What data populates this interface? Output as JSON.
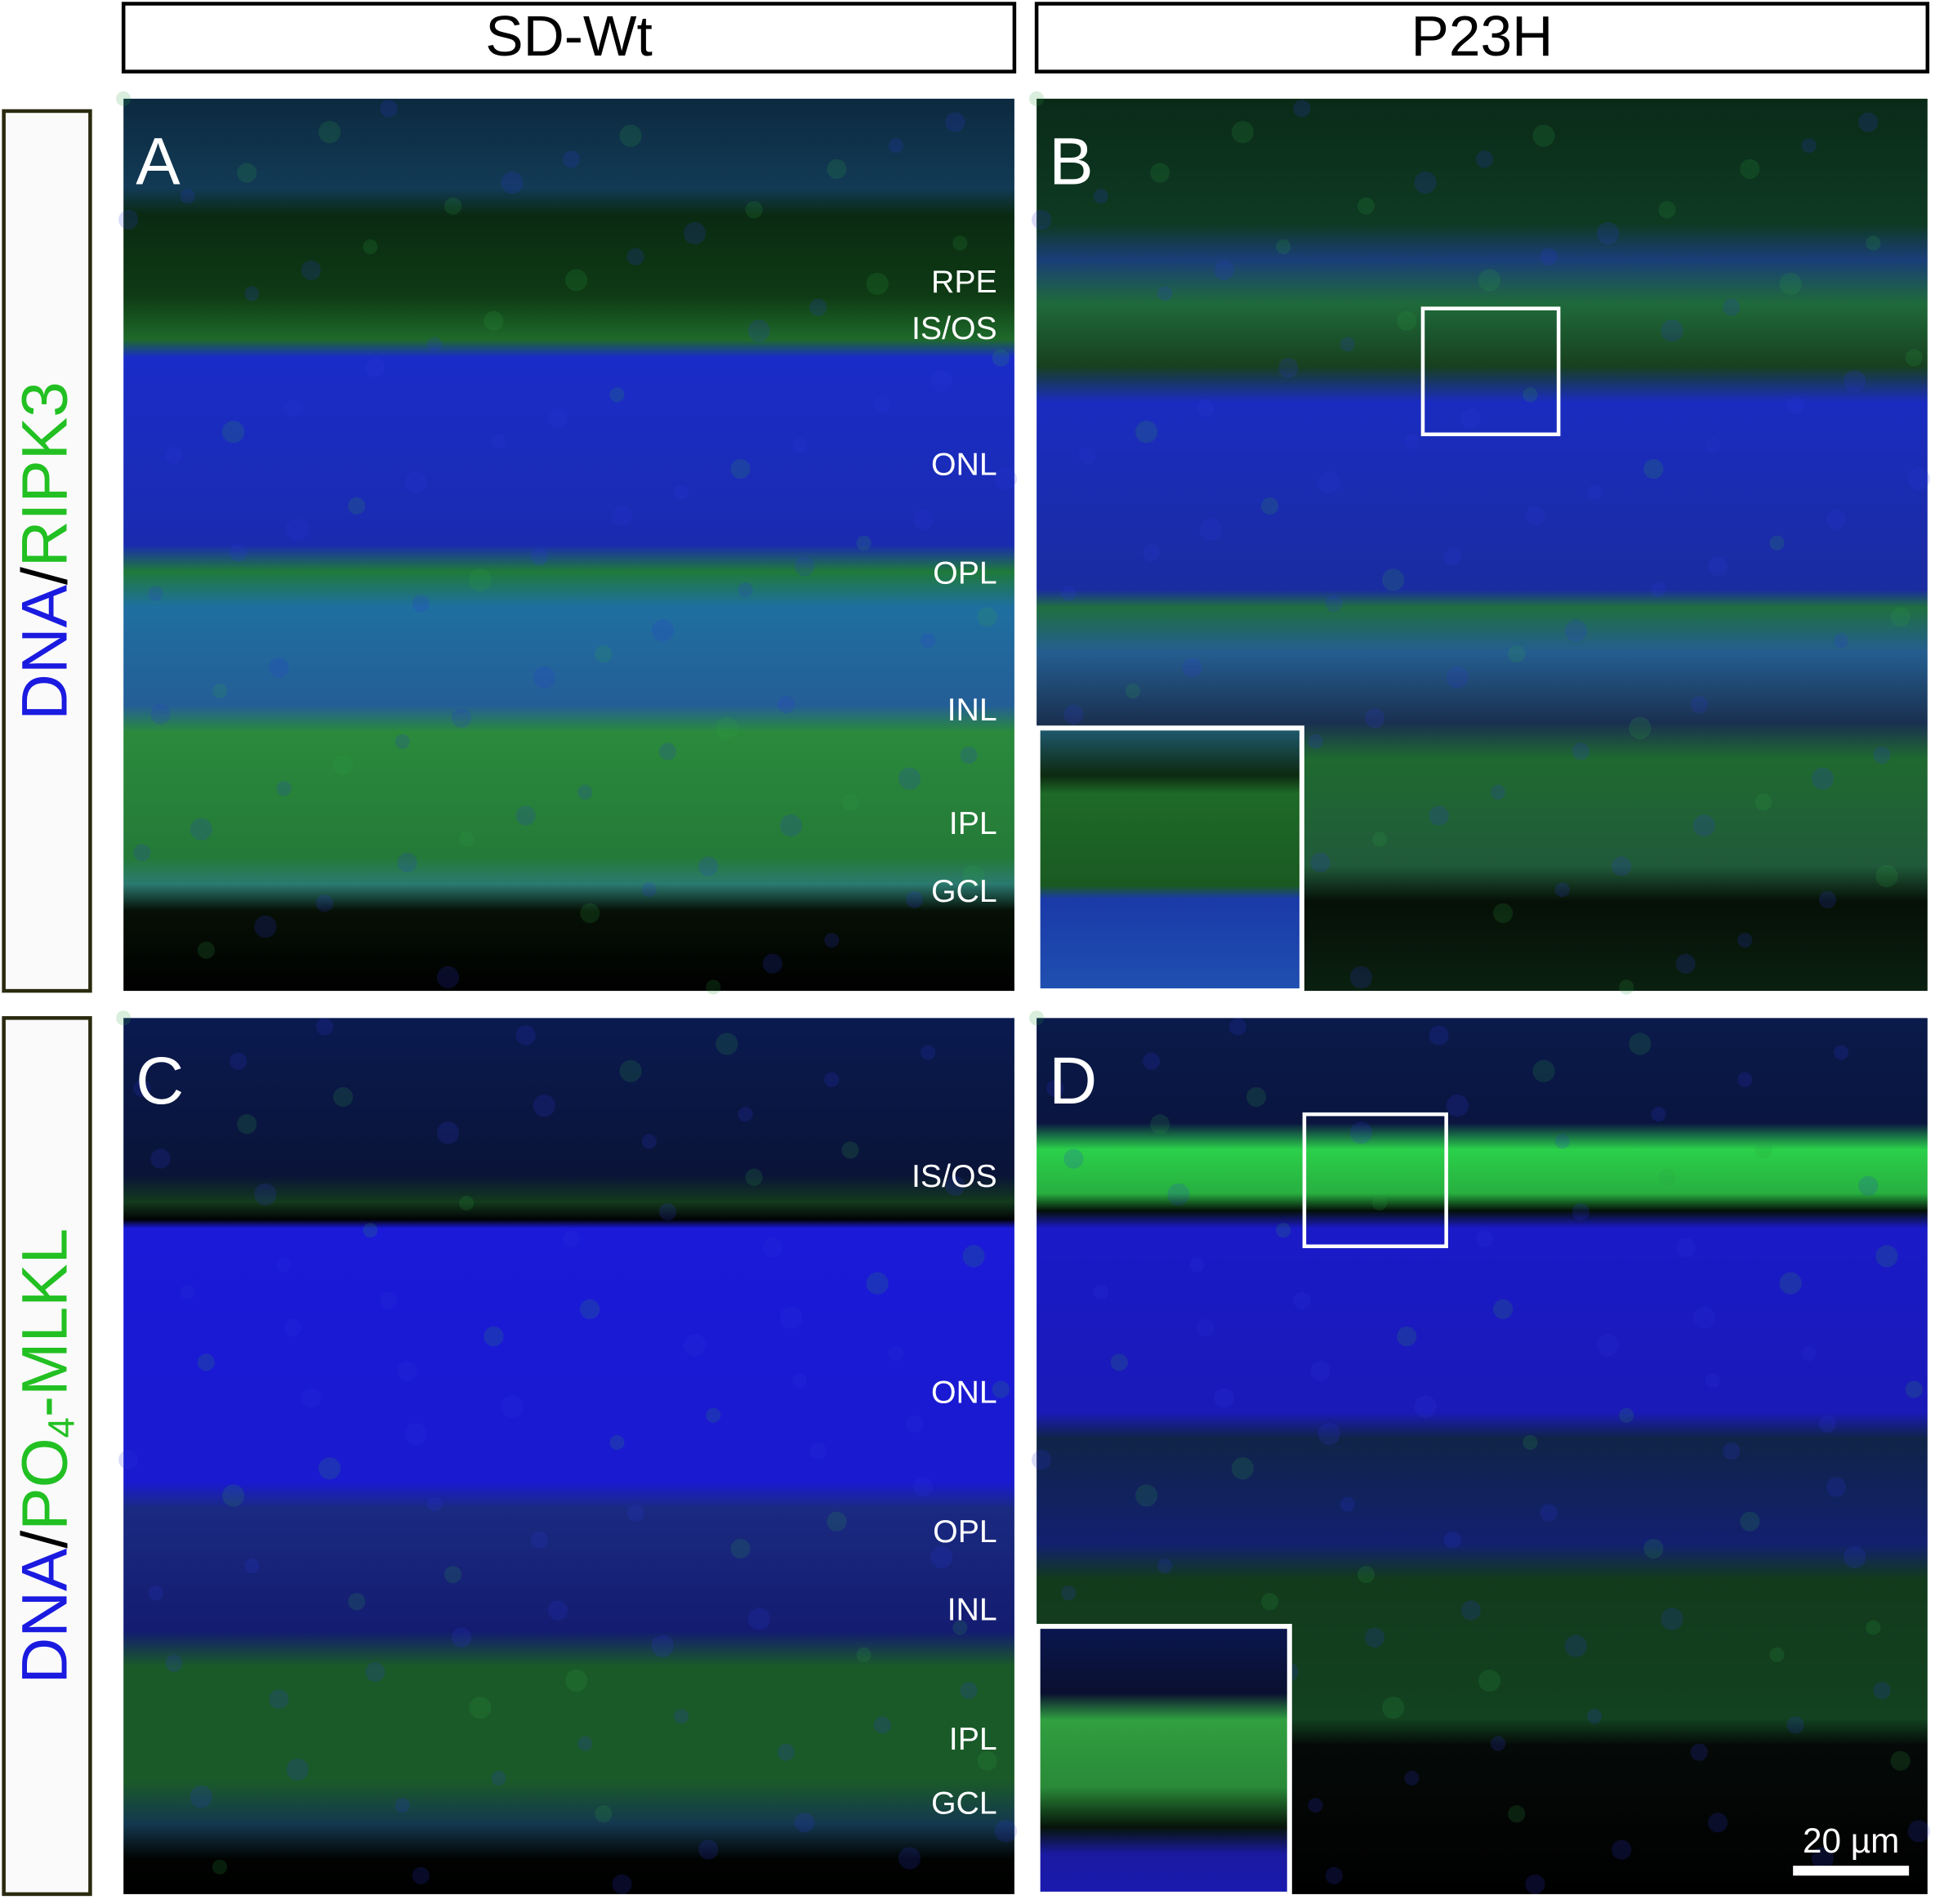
{
  "columns": [
    "SD-Wt",
    "P23H"
  ],
  "rows": [
    {
      "label": {
        "dna": "DNA",
        "slash": "/",
        "marker": "RIPK3"
      }
    },
    {
      "label": {
        "dna": "DNA",
        "slash": "/",
        "marker": "PO",
        "subscript": "4",
        "suffix": "-MLKL"
      }
    }
  ],
  "panels": [
    {
      "letter": "A",
      "layers": [
        "RPE",
        "IS/OS",
        "ONL",
        "OPL",
        "INL",
        "IPL",
        "GCL"
      ]
    },
    {
      "letter": "B",
      "layers": []
    },
    {
      "letter": "C",
      "layers": [
        "IS/OS",
        "ONL",
        "OPL",
        "INL",
        "IPL",
        "GCL"
      ]
    },
    {
      "letter": "D",
      "layers": []
    }
  ],
  "scale_bar": "20 µm"
}
